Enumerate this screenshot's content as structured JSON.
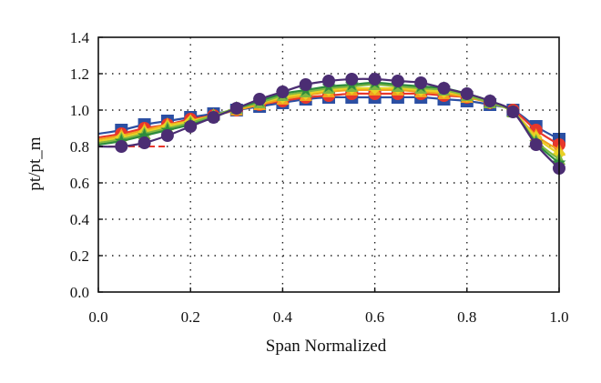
{
  "chart_data": {
    "type": "line",
    "xlabel": "Span Normalized",
    "ylabel": "pt/pt_m",
    "xlim": [
      0,
      1
    ],
    "ylim": [
      0,
      1.4
    ],
    "xticks": [
      "0.0",
      "0.2",
      "0.4",
      "0.6",
      "0.8",
      "1.0"
    ],
    "yticks": [
      "0.0",
      "0.2",
      "0.4",
      "0.6",
      "0.8",
      "1.0",
      "1.2",
      "1.4"
    ],
    "grid": true,
    "x": [
      0.0,
      0.05,
      0.1,
      0.15,
      0.2,
      0.25,
      0.3,
      0.35,
      0.4,
      0.45,
      0.5,
      0.55,
      0.6,
      0.65,
      0.7,
      0.75,
      0.8,
      0.85,
      0.9,
      0.95,
      1.0
    ],
    "series": [
      {
        "marker": "square",
        "color": "#2b4fa3",
        "values": [
          0.87,
          0.89,
          0.92,
          0.94,
          0.96,
          0.98,
          1.0,
          1.02,
          1.04,
          1.06,
          1.07,
          1.07,
          1.07,
          1.07,
          1.07,
          1.06,
          1.05,
          1.03,
          1.0,
          0.91,
          0.84
        ]
      },
      {
        "marker": "circle",
        "color": "#e8372b",
        "values": [
          0.85,
          0.87,
          0.9,
          0.92,
          0.95,
          0.97,
          1.0,
          1.03,
          1.05,
          1.07,
          1.08,
          1.09,
          1.09,
          1.09,
          1.09,
          1.08,
          1.07,
          1.04,
          1.0,
          0.89,
          0.81
        ]
      },
      {
        "marker": "triangle",
        "color": "#f2a21e",
        "values": [
          0.84,
          0.86,
          0.89,
          0.92,
          0.94,
          0.97,
          1.0,
          1.03,
          1.06,
          1.08,
          1.1,
          1.11,
          1.11,
          1.11,
          1.1,
          1.09,
          1.07,
          1.04,
          0.99,
          0.86,
          0.78
        ]
      },
      {
        "marker": "diamond",
        "color": "#e8d225",
        "values": [
          0.83,
          0.85,
          0.88,
          0.91,
          0.94,
          0.97,
          1.01,
          1.04,
          1.07,
          1.09,
          1.11,
          1.12,
          1.12,
          1.12,
          1.11,
          1.1,
          1.08,
          1.04,
          0.99,
          0.85,
          0.76
        ]
      },
      {
        "marker": "triangle",
        "color": "#7fb842",
        "values": [
          0.82,
          0.84,
          0.87,
          0.9,
          0.93,
          0.97,
          1.01,
          1.04,
          1.08,
          1.1,
          1.12,
          1.13,
          1.14,
          1.13,
          1.12,
          1.11,
          1.08,
          1.04,
          0.99,
          0.83,
          0.73
        ]
      },
      {
        "marker": "star",
        "color": "#2e8b3d",
        "values": [
          0.81,
          0.83,
          0.86,
          0.89,
          0.92,
          0.96,
          1.01,
          1.05,
          1.09,
          1.11,
          1.13,
          1.14,
          1.15,
          1.14,
          1.13,
          1.12,
          1.09,
          1.05,
          0.99,
          0.82,
          0.71
        ]
      },
      {
        "marker": "circle",
        "color": "#4b2d73",
        "values": [
          0.8,
          0.8,
          0.82,
          0.86,
          0.91,
          0.96,
          1.01,
          1.06,
          1.1,
          1.14,
          1.16,
          1.17,
          1.17,
          1.16,
          1.15,
          1.12,
          1.09,
          1.05,
          0.99,
          0.81,
          0.68
        ]
      }
    ],
    "reference_line": {
      "color": "#e8372b",
      "y": 0.8,
      "x": [
        0,
        0.15
      ]
    }
  }
}
